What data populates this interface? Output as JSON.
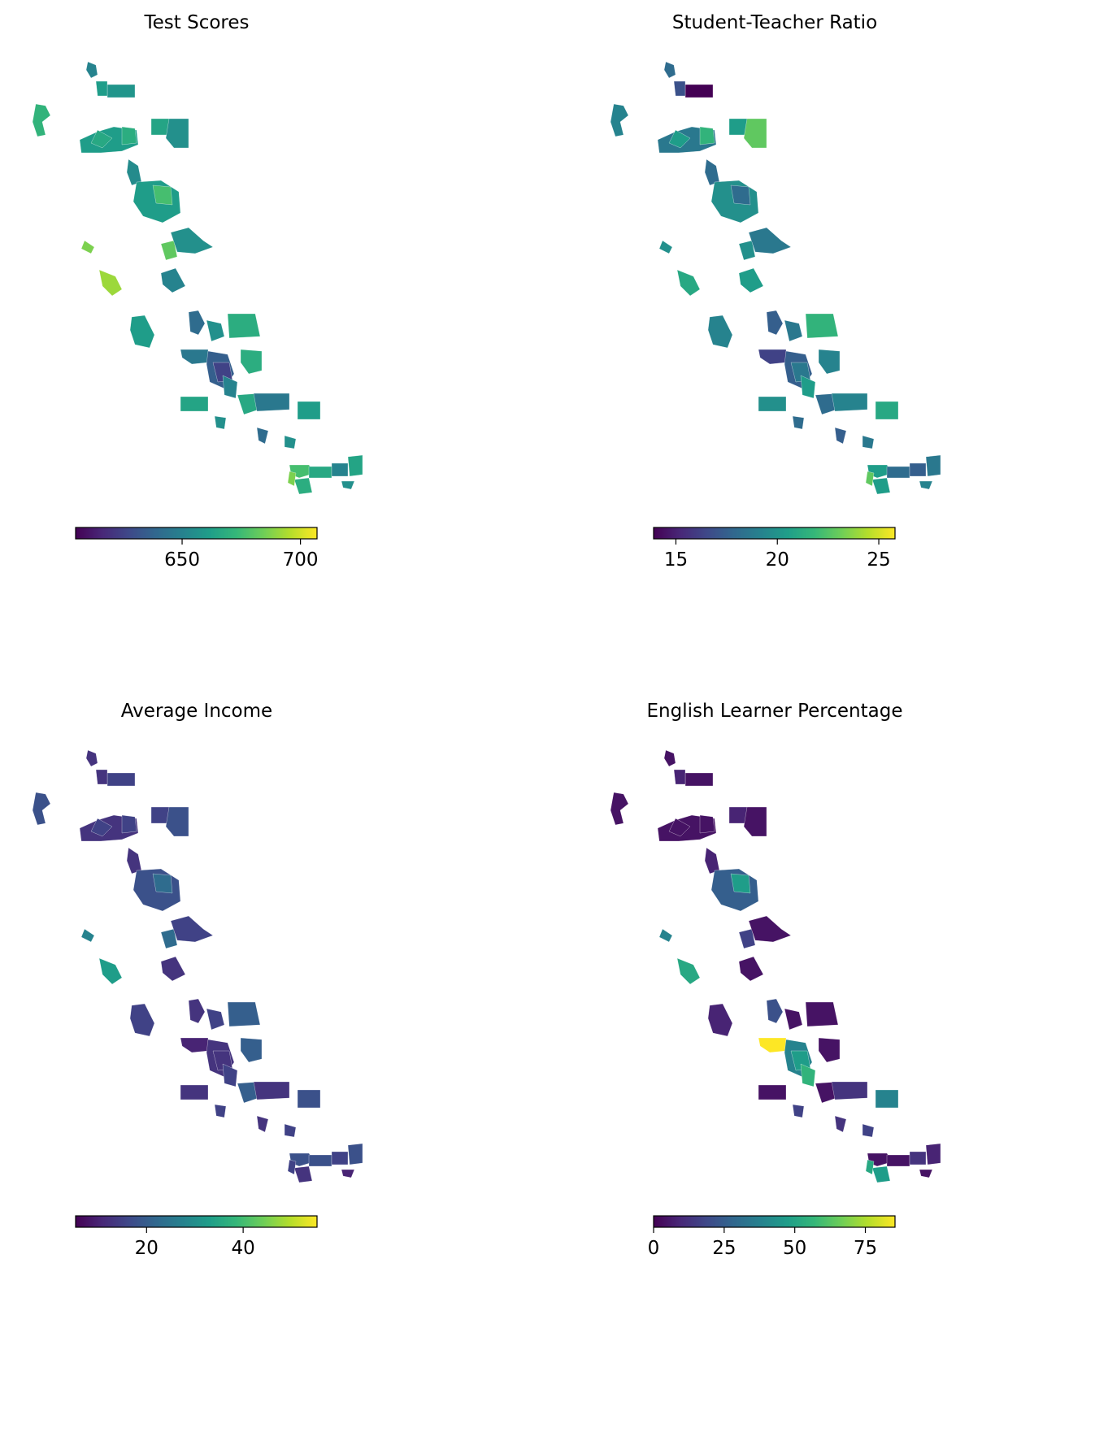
{
  "panels": [
    {
      "title": "Test Scores",
      "colorbar": {
        "min": 605,
        "max": 707,
        "ticks": [
          650,
          700
        ]
      }
    },
    {
      "title": "Student-Teacher Ratio",
      "colorbar": {
        "min": 13.9,
        "max": 25.8,
        "ticks": [
          15,
          20,
          25
        ]
      }
    },
    {
      "title": "Average Income",
      "colorbar": {
        "min": 5.3,
        "max": 55.3,
        "ticks": [
          20,
          40
        ]
      }
    },
    {
      "title": "English Learner Percentage",
      "colorbar": {
        "min": 0,
        "max": 85.5,
        "ticks": [
          0,
          25,
          50,
          75
        ]
      }
    }
  ],
  "colormap": [
    "#440154",
    "#482878",
    "#3e4989",
    "#31688e",
    "#26828e",
    "#1f9e89",
    "#35b779",
    "#6ece58",
    "#b5de2b",
    "#fde725"
  ],
  "district_values": {
    "test_scores": [
      0.45,
      0.52,
      0.55,
      0.65,
      0.58,
      0.5,
      0.55,
      0.6,
      0.62,
      0.48,
      0.55,
      0.7,
      0.8,
      0.85,
      0.75,
      0.5,
      0.45,
      0.55,
      0.35,
      0.5,
      0.62,
      0.62,
      0.4,
      0.3,
      0.2,
      0.45,
      0.58,
      0.6,
      0.4,
      0.55,
      0.5,
      0.35,
      0.5,
      0.7,
      0.6,
      0.45,
      0.58,
      0.62,
      0.8,
      0.5
    ],
    "student_ratio": [
      0.35,
      0.0,
      0.25,
      0.45,
      0.55,
      0.75,
      0.4,
      0.55,
      0.65,
      0.35,
      0.5,
      0.35,
      0.5,
      0.6,
      0.5,
      0.4,
      0.55,
      0.45,
      0.3,
      0.4,
      0.65,
      0.45,
      0.2,
      0.3,
      0.4,
      0.55,
      0.5,
      0.35,
      0.45,
      0.6,
      0.35,
      0.3,
      0.4,
      0.55,
      0.35,
      0.3,
      0.4,
      0.55,
      0.75,
      0.45
    ],
    "income": [
      0.15,
      0.2,
      0.15,
      0.25,
      0.2,
      0.25,
      0.15,
      0.2,
      0.2,
      0.15,
      0.25,
      0.35,
      0.45,
      0.55,
      0.35,
      0.2,
      0.15,
      0.2,
      0.15,
      0.2,
      0.3,
      0.3,
      0.1,
      0.15,
      0.15,
      0.2,
      0.15,
      0.3,
      0.15,
      0.25,
      0.2,
      0.15,
      0.2,
      0.25,
      0.25,
      0.2,
      0.25,
      0.15,
      0.2,
      0.1
    ],
    "english": [
      0.05,
      0.05,
      0.1,
      0.05,
      0.1,
      0.05,
      0.05,
      0.05,
      0.05,
      0.1,
      0.3,
      0.55,
      0.45,
      0.6,
      0.2,
      0.05,
      0.05,
      0.1,
      0.25,
      0.05,
      0.05,
      0.05,
      1.0,
      0.45,
      0.55,
      0.65,
      0.05,
      0.05,
      0.15,
      0.45,
      0.2,
      0.15,
      0.2,
      0.05,
      0.05,
      0.15,
      0.1,
      0.55,
      0.6,
      0.05
    ]
  }
}
